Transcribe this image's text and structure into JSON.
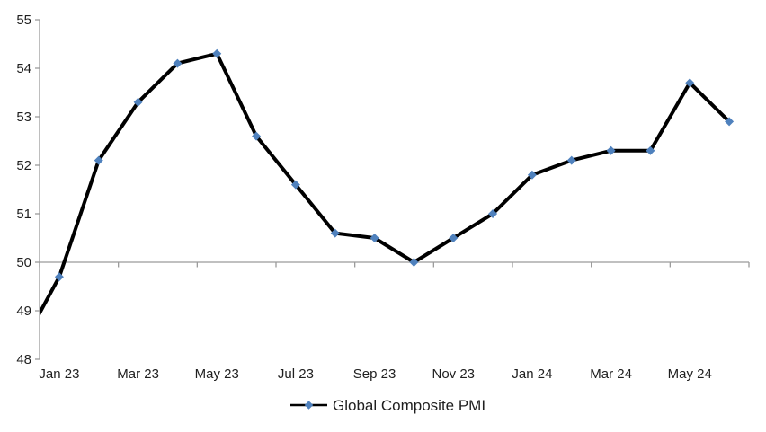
{
  "chart_data": {
    "type": "line",
    "series": [
      {
        "name": "Global Composite PMI",
        "line_color": "#000000",
        "marker": "diamond",
        "marker_color": "#4F81BD",
        "x": [
          "Dec 22",
          "Jan 23",
          "Feb 23",
          "Mar 23",
          "Apr 23",
          "May 23",
          "Jun 23",
          "Jul 23",
          "Aug 23",
          "Sep 23",
          "Oct 23",
          "Nov 23",
          "Dec 23",
          "Jan 24",
          "Feb 24",
          "Mar 24",
          "Apr 24",
          "May 24",
          "Jun 24"
        ],
        "values": [
          48.2,
          49.7,
          52.1,
          53.3,
          54.1,
          54.3,
          52.6,
          51.6,
          50.6,
          50.5,
          50.0,
          50.5,
          51.0,
          51.8,
          52.1,
          52.3,
          52.3,
          53.7,
          52.9
        ]
      }
    ],
    "x_tick_labels": [
      "Jan 23",
      "Mar 23",
      "May 23",
      "Jul 23",
      "Sep 23",
      "Nov 23",
      "Jan 24",
      "Mar 24",
      "May 24"
    ],
    "y_ticks": [
      48,
      49,
      50,
      51,
      52,
      53,
      54,
      55
    ],
    "ylim": [
      48,
      55
    ],
    "x_axis_crosses_at": 50,
    "x_tick_interval_months": 2,
    "grid": false,
    "first_point_clipped_at_left_edge": true,
    "legend": {
      "label": "Global Composite PMI",
      "position": "bottom-center"
    },
    "axis_color": "#9B9B9B",
    "text_color": "#1f1f1f"
  }
}
